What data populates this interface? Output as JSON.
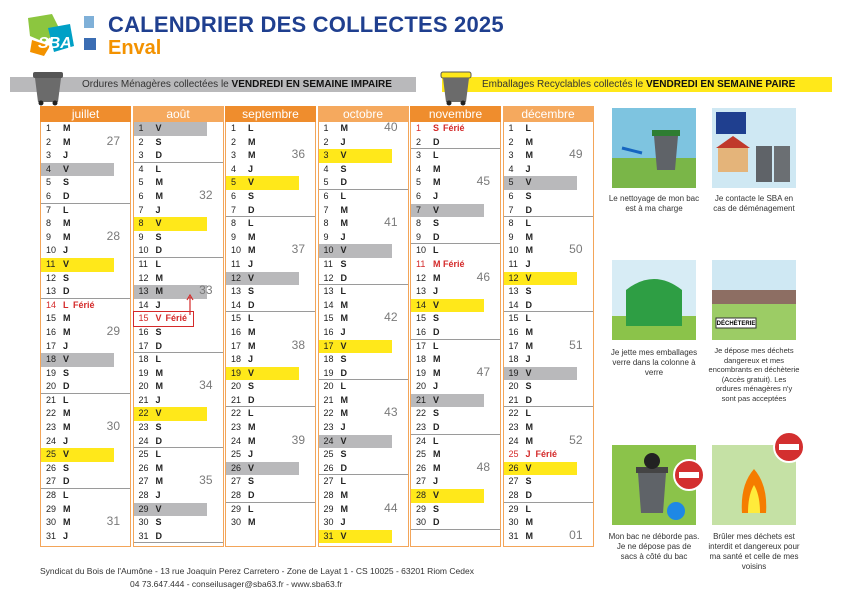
{
  "header": {
    "logo": "SBA",
    "title": "CALENDRIER DES COLLECTES 2025",
    "subtitle": "Enval"
  },
  "legend": {
    "om": {
      "text": "Ordures Ménagères collectées le",
      "day": "VENDREDI EN SEMAINE IMPAIRE",
      "color": "#b9b9bb"
    },
    "rec": {
      "text": "Emballages Recyclables collectés le",
      "day": "VENDREDI EN SEMAINE PAIRE",
      "color": "#ffe81a"
    }
  },
  "months": [
    {
      "name": "juillet",
      "days": [
        {
          "n": 1,
          "l": "M"
        },
        {
          "n": 2,
          "l": "M",
          "week": 27
        },
        {
          "n": 3,
          "l": "J"
        },
        {
          "n": 4,
          "l": "V",
          "c": "#b9b9bb"
        },
        {
          "n": 5,
          "l": "S"
        },
        {
          "n": 6,
          "l": "D"
        },
        {
          "n": 7,
          "l": "L"
        },
        {
          "n": 8,
          "l": "M"
        },
        {
          "n": 9,
          "l": "M",
          "week": 28
        },
        {
          "n": 10,
          "l": "J"
        },
        {
          "n": 11,
          "l": "V",
          "c": "#ffe81a"
        },
        {
          "n": 12,
          "l": "S"
        },
        {
          "n": 13,
          "l": "D"
        },
        {
          "n": 14,
          "l": "L",
          "note": "Férié"
        },
        {
          "n": 15,
          "l": "M"
        },
        {
          "n": 16,
          "l": "M",
          "week": 29
        },
        {
          "n": 17,
          "l": "J"
        },
        {
          "n": 18,
          "l": "V",
          "c": "#b9b9bb"
        },
        {
          "n": 19,
          "l": "S"
        },
        {
          "n": 20,
          "l": "D"
        },
        {
          "n": 21,
          "l": "L"
        },
        {
          "n": 22,
          "l": "M"
        },
        {
          "n": 23,
          "l": "M",
          "week": 30
        },
        {
          "n": 24,
          "l": "J"
        },
        {
          "n": 25,
          "l": "V",
          "c": "#ffe81a"
        },
        {
          "n": 26,
          "l": "S"
        },
        {
          "n": 27,
          "l": "D"
        },
        {
          "n": 28,
          "l": "L"
        },
        {
          "n": 29,
          "l": "M"
        },
        {
          "n": 30,
          "l": "M",
          "week": 31
        },
        {
          "n": 31,
          "l": "J"
        }
      ]
    },
    {
      "name": "août",
      "days": [
        {
          "n": 1,
          "l": "V",
          "c": "#b9b9bb"
        },
        {
          "n": 2,
          "l": "S"
        },
        {
          "n": 3,
          "l": "D"
        },
        {
          "n": 4,
          "l": "L"
        },
        {
          "n": 5,
          "l": "M"
        },
        {
          "n": 6,
          "l": "M",
          "week": 32
        },
        {
          "n": 7,
          "l": "J"
        },
        {
          "n": 8,
          "l": "V",
          "c": "#ffe81a"
        },
        {
          "n": 9,
          "l": "S"
        },
        {
          "n": 10,
          "l": "D"
        },
        {
          "n": 11,
          "l": "L"
        },
        {
          "n": 12,
          "l": "M"
        },
        {
          "n": 13,
          "l": "M",
          "week": 33,
          "c": "#b9b9bb"
        },
        {
          "n": 14,
          "l": "J"
        },
        {
          "n": 15,
          "l": "V",
          "note": "Férié"
        },
        {
          "n": 16,
          "l": "S"
        },
        {
          "n": 17,
          "l": "D"
        },
        {
          "n": 18,
          "l": "L"
        },
        {
          "n": 19,
          "l": "M"
        },
        {
          "n": 20,
          "l": "M",
          "week": 34
        },
        {
          "n": 21,
          "l": "J"
        },
        {
          "n": 22,
          "l": "V",
          "c": "#ffe81a"
        },
        {
          "n": 23,
          "l": "S"
        },
        {
          "n": 24,
          "l": "D"
        },
        {
          "n": 25,
          "l": "L"
        },
        {
          "n": 26,
          "l": "M"
        },
        {
          "n": 27,
          "l": "M",
          "week": 35
        },
        {
          "n": 28,
          "l": "J"
        },
        {
          "n": 29,
          "l": "V",
          "c": "#b9b9bb"
        },
        {
          "n": 30,
          "l": "S"
        },
        {
          "n": 31,
          "l": "D"
        }
      ]
    },
    {
      "name": "septembre",
      "days": [
        {
          "n": 1,
          "l": "L"
        },
        {
          "n": 2,
          "l": "M"
        },
        {
          "n": 3,
          "l": "M",
          "week": 36
        },
        {
          "n": 4,
          "l": "J"
        },
        {
          "n": 5,
          "l": "V",
          "c": "#ffe81a"
        },
        {
          "n": 6,
          "l": "S"
        },
        {
          "n": 7,
          "l": "D"
        },
        {
          "n": 8,
          "l": "L"
        },
        {
          "n": 9,
          "l": "M"
        },
        {
          "n": 10,
          "l": "M",
          "week": 37
        },
        {
          "n": 11,
          "l": "J"
        },
        {
          "n": 12,
          "l": "V",
          "c": "#b9b9bb"
        },
        {
          "n": 13,
          "l": "S"
        },
        {
          "n": 14,
          "l": "D"
        },
        {
          "n": 15,
          "l": "L"
        },
        {
          "n": 16,
          "l": "M"
        },
        {
          "n": 17,
          "l": "M",
          "week": 38
        },
        {
          "n": 18,
          "l": "J"
        },
        {
          "n": 19,
          "l": "V",
          "c": "#ffe81a"
        },
        {
          "n": 20,
          "l": "S"
        },
        {
          "n": 21,
          "l": "D"
        },
        {
          "n": 22,
          "l": "L"
        },
        {
          "n": 23,
          "l": "M"
        },
        {
          "n": 24,
          "l": "M",
          "week": 39
        },
        {
          "n": 25,
          "l": "J"
        },
        {
          "n": 26,
          "l": "V",
          "c": "#b9b9bb"
        },
        {
          "n": 27,
          "l": "S"
        },
        {
          "n": 28,
          "l": "D"
        },
        {
          "n": 29,
          "l": "L"
        },
        {
          "n": 30,
          "l": "M"
        }
      ]
    },
    {
      "name": "octobre",
      "days": [
        {
          "n": 1,
          "l": "M",
          "week": 40
        },
        {
          "n": 2,
          "l": "J"
        },
        {
          "n": 3,
          "l": "V",
          "c": "#ffe81a"
        },
        {
          "n": 4,
          "l": "S"
        },
        {
          "n": 5,
          "l": "D"
        },
        {
          "n": 6,
          "l": "L"
        },
        {
          "n": 7,
          "l": "M"
        },
        {
          "n": 8,
          "l": "M",
          "week": 41
        },
        {
          "n": 9,
          "l": "J"
        },
        {
          "n": 10,
          "l": "V",
          "c": "#b9b9bb"
        },
        {
          "n": 11,
          "l": "S"
        },
        {
          "n": 12,
          "l": "D"
        },
        {
          "n": 13,
          "l": "L"
        },
        {
          "n": 14,
          "l": "M"
        },
        {
          "n": 15,
          "l": "M",
          "week": 42
        },
        {
          "n": 16,
          "l": "J"
        },
        {
          "n": 17,
          "l": "V",
          "c": "#ffe81a"
        },
        {
          "n": 18,
          "l": "S"
        },
        {
          "n": 19,
          "l": "D"
        },
        {
          "n": 20,
          "l": "L"
        },
        {
          "n": 21,
          "l": "M"
        },
        {
          "n": 22,
          "l": "M",
          "week": 43
        },
        {
          "n": 23,
          "l": "J"
        },
        {
          "n": 24,
          "l": "V",
          "c": "#b9b9bb"
        },
        {
          "n": 25,
          "l": "S"
        },
        {
          "n": 26,
          "l": "D"
        },
        {
          "n": 27,
          "l": "L"
        },
        {
          "n": 28,
          "l": "M"
        },
        {
          "n": 29,
          "l": "M",
          "week": 44
        },
        {
          "n": 30,
          "l": "J"
        },
        {
          "n": 31,
          "l": "V",
          "c": "#ffe81a"
        }
      ]
    },
    {
      "name": "novembre",
      "days": [
        {
          "n": 1,
          "l": "S",
          "note": "Férié"
        },
        {
          "n": 2,
          "l": "D"
        },
        {
          "n": 3,
          "l": "L"
        },
        {
          "n": 4,
          "l": "M"
        },
        {
          "n": 5,
          "l": "M",
          "week": 45
        },
        {
          "n": 6,
          "l": "J"
        },
        {
          "n": 7,
          "l": "V",
          "c": "#b9b9bb"
        },
        {
          "n": 8,
          "l": "S"
        },
        {
          "n": 9,
          "l": "D"
        },
        {
          "n": 10,
          "l": "L"
        },
        {
          "n": 11,
          "l": "M",
          "note": "Férié"
        },
        {
          "n": 12,
          "l": "M",
          "week": 46
        },
        {
          "n": 13,
          "l": "J"
        },
        {
          "n": 14,
          "l": "V",
          "c": "#ffe81a"
        },
        {
          "n": 15,
          "l": "S"
        },
        {
          "n": 16,
          "l": "D"
        },
        {
          "n": 17,
          "l": "L"
        },
        {
          "n": 18,
          "l": "M"
        },
        {
          "n": 19,
          "l": "M",
          "week": 47
        },
        {
          "n": 20,
          "l": "J"
        },
        {
          "n": 21,
          "l": "V",
          "c": "#b9b9bb"
        },
        {
          "n": 22,
          "l": "S"
        },
        {
          "n": 23,
          "l": "D"
        },
        {
          "n": 24,
          "l": "L"
        },
        {
          "n": 25,
          "l": "M"
        },
        {
          "n": 26,
          "l": "M",
          "week": 48
        },
        {
          "n": 27,
          "l": "J"
        },
        {
          "n": 28,
          "l": "V",
          "c": "#ffe81a"
        },
        {
          "n": 29,
          "l": "S"
        },
        {
          "n": 30,
          "l": "D"
        }
      ]
    },
    {
      "name": "décembre",
      "days": [
        {
          "n": 1,
          "l": "L"
        },
        {
          "n": 2,
          "l": "M"
        },
        {
          "n": 3,
          "l": "M",
          "week": 49
        },
        {
          "n": 4,
          "l": "J"
        },
        {
          "n": 5,
          "l": "V",
          "c": "#b9b9bb"
        },
        {
          "n": 6,
          "l": "S"
        },
        {
          "n": 7,
          "l": "D"
        },
        {
          "n": 8,
          "l": "L"
        },
        {
          "n": 9,
          "l": "M"
        },
        {
          "n": 10,
          "l": "M",
          "week": 50
        },
        {
          "n": 11,
          "l": "J"
        },
        {
          "n": 12,
          "l": "V",
          "c": "#ffe81a"
        },
        {
          "n": 13,
          "l": "S"
        },
        {
          "n": 14,
          "l": "D"
        },
        {
          "n": 15,
          "l": "L"
        },
        {
          "n": 16,
          "l": "M"
        },
        {
          "n": 17,
          "l": "M",
          "week": 51
        },
        {
          "n": 18,
          "l": "J"
        },
        {
          "n": 19,
          "l": "V",
          "c": "#b9b9bb"
        },
        {
          "n": 20,
          "l": "S"
        },
        {
          "n": 21,
          "l": "D"
        },
        {
          "n": 22,
          "l": "L"
        },
        {
          "n": 23,
          "l": "M"
        },
        {
          "n": 24,
          "l": "M",
          "week": 52
        },
        {
          "n": 25,
          "l": "J",
          "note": "Férié"
        },
        {
          "n": 26,
          "l": "V",
          "c": "#ffe81a"
        },
        {
          "n": 27,
          "l": "S"
        },
        {
          "n": 28,
          "l": "D"
        },
        {
          "n": 29,
          "l": "L"
        },
        {
          "n": 30,
          "l": "M"
        },
        {
          "n": 31,
          "l": "M",
          "week": "01"
        }
      ]
    }
  ],
  "tips": [
    {
      "text": "Le nettoyage de mon bac est à ma charge"
    },
    {
      "text": "Je contacte le SBA en cas de déménagement"
    },
    {
      "text": "Je jette mes emballages verre dans la colonne à verre"
    },
    {
      "text": "Je dépose mes déchets dangereux et mes encombrants en déchèterie (Accès gratuit). Les ordures ménagères n'y sont pas acceptées",
      "sign": "DÉCHÈTERIE"
    },
    {
      "text": "Mon bac ne déborde pas. Je ne dépose pas de sacs à côté du bac"
    },
    {
      "text": "Brûler mes déchets est interdit et dangereux pour ma santé et celle de mes voisins"
    }
  ],
  "footer": {
    "address": "Syndicat du Bois de l'Aumône - 13 rue Joaquin Perez Carretero - Zone de Layat 1 - CS 10025 - 63201 Riom Cedex",
    "contact": "04 73.647.444 - conseilusager@sba63.fr - www.sba63.fr"
  }
}
